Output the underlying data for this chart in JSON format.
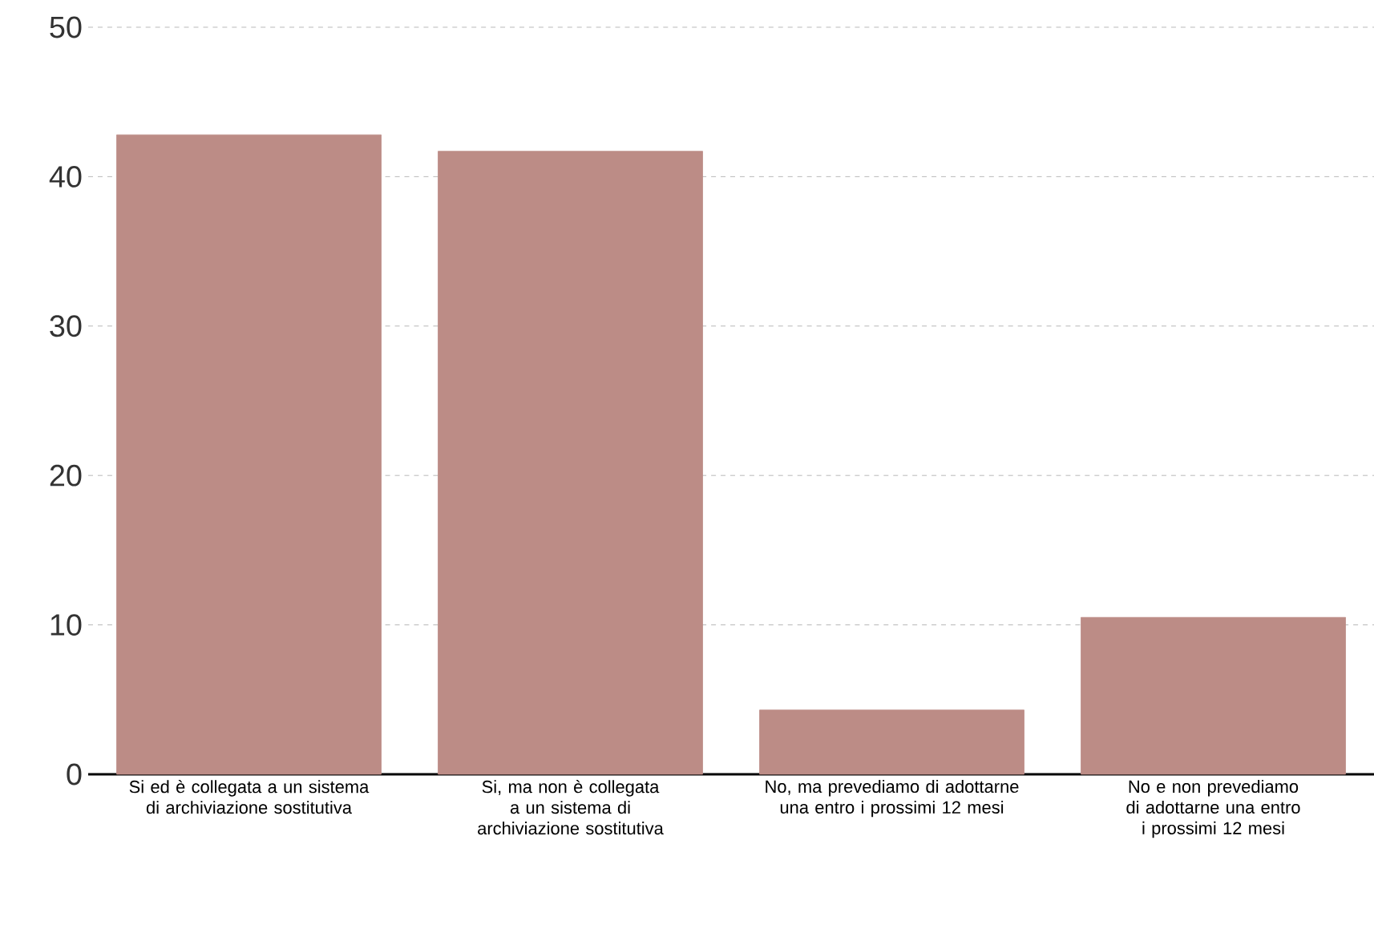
{
  "chart_data": {
    "type": "bar",
    "categories": [
      "Si ed è collegata a un sistema di archiviazione sostitutiva",
      "Si, ma non è collegata a un sistema di archiviazione sostitutiva",
      "No, ma prevediamo di adottarne una entro i prossimi 12 mesi",
      "No e non prevediamo di adottarne una entro i prossimi 12 mesi"
    ],
    "values": [
      42.8,
      41.7,
      4.3,
      10.5
    ],
    "color": "#bc8c86",
    "ylim": [
      0,
      50
    ],
    "yticks": [
      0,
      10,
      20,
      30,
      40,
      50
    ],
    "grid": "y"
  }
}
